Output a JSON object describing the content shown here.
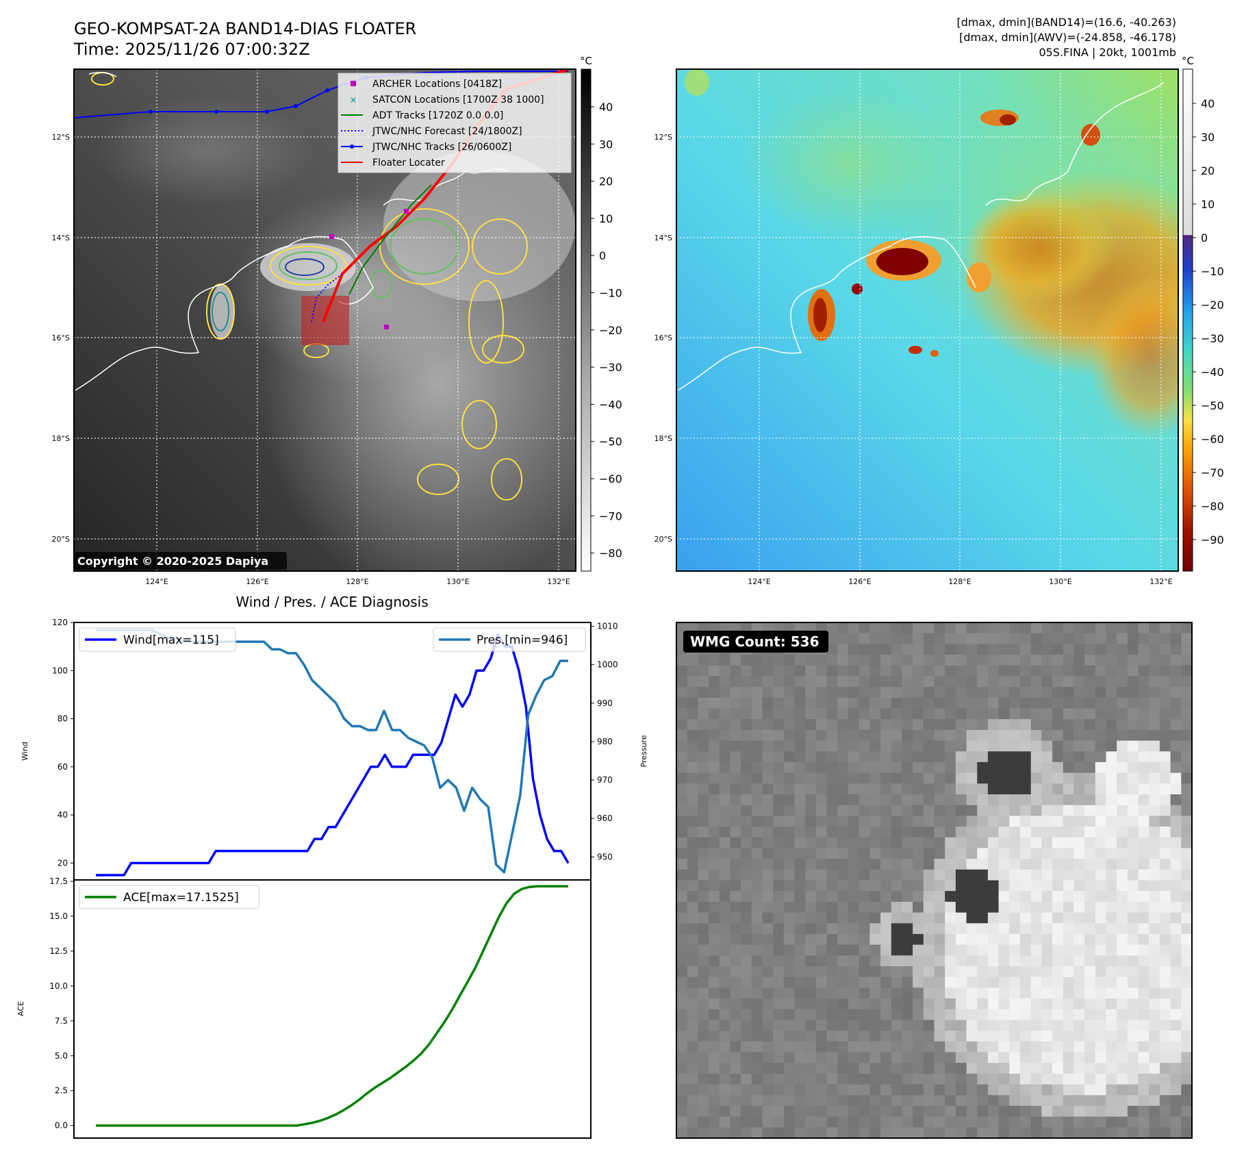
{
  "header": {
    "title": "GEO-KOMPSAT-2A BAND14-DIAS FLOATER",
    "time": "Time: 2025/11/26 07:00:32Z",
    "dmax_band14": "[dmax, dmin](BAND14)=(16.6, -40.263)",
    "dmax_awv": "[dmax, dmin](AWV)=(-24.858, -46.178)",
    "storm_info": "05S.FINA | 20kt, 1001mb"
  },
  "map": {
    "lat_labels": [
      "12°S",
      "14°S",
      "16°S",
      "18°S",
      "20°S"
    ],
    "lon_labels": [
      "124°E",
      "126°E",
      "128°E",
      "130°E",
      "132°E"
    ],
    "copyright": "Copyright © 2020-2025 Dapiya",
    "legend": [
      {
        "label": "ARCHER Locations [0418Z]",
        "color": "#c000c0",
        "kind": "square"
      },
      {
        "label": "SATCON Locations [1700Z 38 1000]",
        "color": "#20a0a0",
        "kind": "x"
      },
      {
        "label": "ADT Tracks [1720Z 0.0 0.0]",
        "color": "#008000",
        "kind": "line"
      },
      {
        "label": "JTWC/NHC Forecast [24/1800Z]",
        "color": "#0000ff",
        "kind": "dotted"
      },
      {
        "label": "JTWC/NHC Tracks [26/0600Z]",
        "color": "#0000ff",
        "kind": "line-dot"
      },
      {
        "label": "Floater Locater",
        "color": "#ff0000",
        "kind": "line"
      }
    ]
  },
  "colorbars": {
    "unit": "°C",
    "left_ticks": [
      "40",
      "30",
      "20",
      "10",
      "0",
      "−10",
      "−20",
      "−30",
      "−40",
      "−50",
      "−60",
      "−70",
      "−80"
    ],
    "right_ticks": [
      "40",
      "30",
      "20",
      "10",
      "0",
      "−10",
      "−20",
      "−30",
      "−40",
      "−50",
      "−60",
      "−70",
      "−80",
      "−90"
    ]
  },
  "wmg": {
    "label": "WMG Count: 536"
  },
  "chart_data": [
    {
      "type": "line",
      "title": "Wind / Pres. / ACE Diagnosis",
      "ylabel": "Wind",
      "y2label": "Pressure",
      "ylim": [
        13,
        120
      ],
      "y2lim": [
        944,
        1011
      ],
      "yticks": [
        20,
        40,
        60,
        80,
        100,
        120
      ],
      "y2ticks": [
        950,
        960,
        970,
        980,
        990,
        1000,
        1010
      ],
      "series": [
        {
          "name": "Wind[max=115]",
          "axis": "left",
          "color": "#0000ff",
          "values": [
            15,
            15,
            15,
            15,
            15,
            20,
            20,
            20,
            20,
            20,
            20,
            20,
            20,
            20,
            20,
            20,
            20,
            25,
            25,
            25,
            25,
            25,
            25,
            25,
            25,
            25,
            25,
            25,
            25,
            25,
            25,
            30,
            30,
            35,
            35,
            40,
            45,
            50,
            55,
            60,
            60,
            65,
            60,
            60,
            60,
            65,
            65,
            65,
            65,
            70,
            80,
            90,
            85,
            90,
            100,
            100,
            105,
            115,
            110,
            110,
            100,
            85,
            55,
            40,
            30,
            25,
            25,
            20
          ]
        },
        {
          "name": "Pres.[min=946]",
          "axis": "right",
          "color": "#1f77b4",
          "values": [
            1009,
            1009,
            1009,
            1009,
            1009,
            1009,
            1009,
            1009,
            1008,
            1007,
            1007,
            1006,
            1006,
            1006,
            1006,
            1006,
            1006,
            1006,
            1006,
            1006,
            1006,
            1006,
            1004,
            1004,
            1003,
            1003,
            1000,
            996,
            994,
            992,
            990,
            986,
            984,
            984,
            983,
            983,
            988,
            983,
            983,
            981,
            980,
            979,
            976,
            968,
            970,
            968,
            962,
            968,
            965,
            963,
            948,
            946,
            956,
            966,
            987,
            992,
            996,
            997,
            1001,
            1001
          ]
        }
      ]
    },
    {
      "type": "line",
      "ylabel": "ACE",
      "ylim": [
        -0.9,
        17.6
      ],
      "yticks": [
        "0.0",
        "2.5",
        "5.0",
        "7.5",
        "10.0",
        "12.5",
        "15.0",
        "17.5"
      ],
      "series": [
        {
          "name": "ACE[max=17.1525]",
          "color": "#008000",
          "values": [
            0,
            0,
            0,
            0,
            0,
            0,
            0,
            0,
            0,
            0,
            0,
            0,
            0,
            0,
            0,
            0,
            0,
            0,
            0,
            0,
            0,
            0,
            0,
            0,
            0,
            0,
            0,
            0.1,
            0.2,
            0.35,
            0.55,
            0.8,
            1.1,
            1.45,
            1.85,
            2.3,
            2.7,
            3.05,
            3.4,
            3.8,
            4.2,
            4.65,
            5.15,
            5.8,
            6.6,
            7.4,
            8.3,
            9.3,
            10.3,
            11.3,
            12.5,
            13.7,
            14.9,
            15.9,
            16.6,
            16.95,
            17.1,
            17.15,
            17.15,
            17.15,
            17.15,
            17.15
          ]
        }
      ]
    }
  ]
}
